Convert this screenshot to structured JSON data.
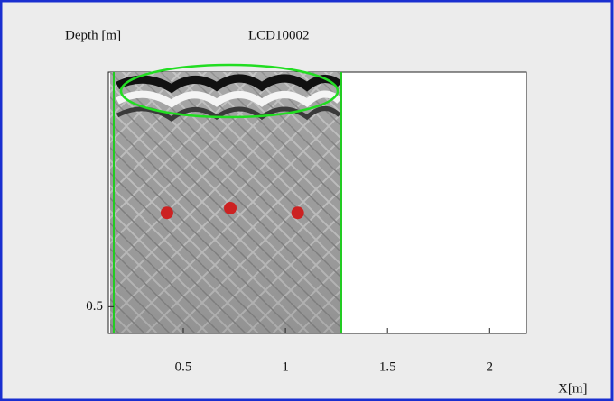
{
  "chart_data": {
    "type": "scatter",
    "title": "LCD10002",
    "y_label": "Depth [m]",
    "x_label": "X[m]",
    "x": [
      0.42,
      0.73,
      1.06
    ],
    "series": [
      {
        "color": "#cc2222",
        "values": [
          0.3,
          0.29,
          0.3
        ]
      }
    ],
    "xlim": [
      0.133,
      2.18
    ],
    "ylim": [
      0.557,
      0
    ],
    "xticks": [
      0.5,
      1,
      1.5,
      2
    ],
    "yticks": [
      0.5
    ]
  }
}
